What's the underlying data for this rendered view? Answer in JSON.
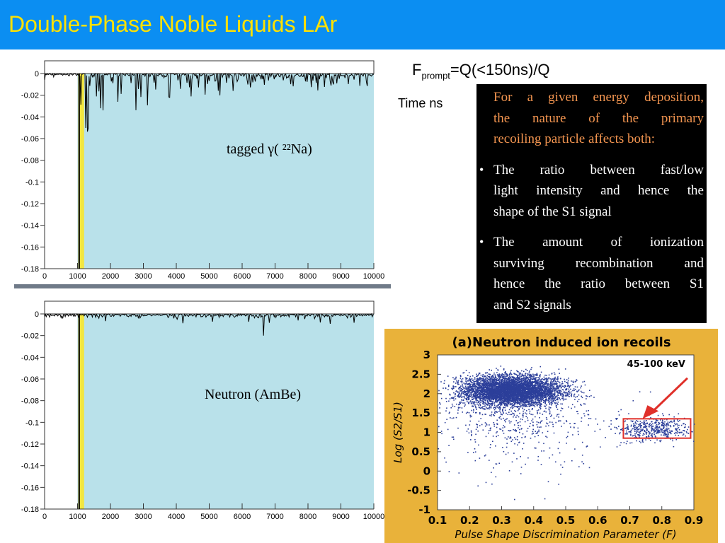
{
  "slide": {
    "title": "Double-Phase Noble Liquids LAr",
    "formula_prefix": "F",
    "formula_sub": "prompt",
    "formula_rest": "=Q(<150ns)/Q",
    "time_label": "Time ns"
  },
  "labels": {
    "top_panel": "tagged γ( ²²Na)",
    "bottom_panel": "Neutron (AmBe)"
  },
  "textbox": {
    "intro_lines": [
      "For a given energy deposition,",
      "the nature of the primary",
      "recoiling particle affects both:"
    ],
    "bullets": [
      {
        "symbol": "•",
        "lines": [
          "The ratio between fast/low",
          "light intensity and hence the",
          "shape of the S1 signal"
        ]
      },
      {
        "symbol": "•",
        "lines": [
          "The amount of ionization",
          "surviving recombination and",
          "hence the  ratio between S1",
          "and S2 signals"
        ]
      }
    ]
  },
  "colors": {
    "title_bg": "#0b8ef2",
    "title_text": "#ffe100",
    "plot_bg": "#b9e1ea",
    "highlight": "#f2e640",
    "scatter_bg": "#e9b23a",
    "scatter_points": "#2c3f9a",
    "callout": "#e0302a"
  },
  "chart_data": [
    {
      "type": "line",
      "title": "",
      "xlabel": "",
      "ylabel": "",
      "xlim": [
        0,
        10000
      ],
      "ylim": [
        -0.18,
        0
      ],
      "x_ticks": [
        "0",
        "1000",
        "2000",
        "3000",
        "4000",
        "5000",
        "6000",
        "7000",
        "8000",
        "9000",
        "10000"
      ],
      "y_ticks": [
        "0",
        "-0.02",
        "-0.04",
        "-0.06",
        "-0.08",
        "-0.1",
        "-0.12",
        "-0.14",
        "-0.16",
        "-0.18"
      ],
      "series": [
        {
          "x": [
            0,
            900,
            1000,
            1050,
            1100,
            1200,
            1500,
            2000,
            3000,
            4000,
            6000,
            8000,
            10000
          ],
          "y": [
            0,
            0,
            0,
            -0.18,
            -0.09,
            -0.04,
            -0.03,
            -0.02,
            -0.015,
            -0.01,
            -0.01,
            -0.005,
            0
          ]
        }
      ],
      "annotation": "tagged γ( ²²Na)"
    },
    {
      "type": "line",
      "title": "",
      "xlabel": "",
      "ylabel": "",
      "xlim": [
        0,
        10000
      ],
      "ylim": [
        -0.18,
        0
      ],
      "x_ticks": [
        "0",
        "1000",
        "2000",
        "3000",
        "4000",
        "5000",
        "6000",
        "7000",
        "8000",
        "9000",
        "10000"
      ],
      "y_ticks": [
        "0",
        "-0.02",
        "-0.04",
        "-0.06",
        "-0.08",
        "-0.1",
        "-0.12",
        "-0.14",
        "-0.16",
        "-0.18"
      ],
      "series": [
        {
          "x": [
            0,
            900,
            1000,
            1050,
            1100,
            1200,
            1500,
            2000,
            6600,
            10000
          ],
          "y": [
            0,
            0,
            0,
            -0.18,
            -0.02,
            -0.01,
            -0.005,
            -0.002,
            -0.02,
            0
          ]
        }
      ],
      "annotation": "Neutron (AmBe)"
    },
    {
      "type": "scatter",
      "title": "(a)Neutron induced ion recoils",
      "xlabel": "Pulse Shape Discrimination Parameter (F)",
      "ylabel": "Log (S2/S1)",
      "energy_label": "45-100 keV",
      "xlim": [
        0.1,
        0.9
      ],
      "ylim": [
        -1,
        3
      ],
      "x_ticks": [
        "0.1",
        "0.2",
        "0.3",
        "0.4",
        "0.5",
        "0.6",
        "0.7",
        "0.8",
        "0.9"
      ],
      "y_ticks": [
        "3",
        "2.5",
        "2",
        "1.5",
        "1",
        "0.5",
        "0",
        "-0.5",
        "-1"
      ],
      "clusters": [
        {
          "name": "",
          "center": [
            0.33,
            2.1
          ],
          "spread": [
            0.1,
            0.25
          ]
        },
        {
          "name": "",
          "center": [
            0.77,
            1.1
          ],
          "spread": [
            0.05,
            0.15
          ]
        }
      ],
      "highlight_box": {
        "x": [
          0.68,
          0.89
        ],
        "y": [
          0.85,
          1.35
        ]
      }
    }
  ]
}
